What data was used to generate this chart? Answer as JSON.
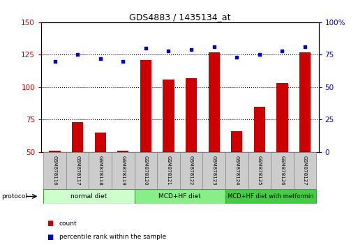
{
  "title": "GDS4883 / 1435134_at",
  "samples": [
    "GSM878116",
    "GSM878117",
    "GSM878118",
    "GSM878119",
    "GSM878120",
    "GSM878121",
    "GSM878122",
    "GSM878123",
    "GSM878124",
    "GSM878125",
    "GSM878126",
    "GSM878127"
  ],
  "bar_values": [
    51,
    73,
    65,
    51,
    121,
    106,
    107,
    127,
    66,
    85,
    103,
    127
  ],
  "dot_values": [
    70,
    75,
    72,
    70,
    80,
    78,
    79,
    81,
    73,
    75,
    78,
    81
  ],
  "bar_color": "#cc0000",
  "dot_color": "#0000cc",
  "ylim_left": [
    50,
    150
  ],
  "ylim_right": [
    0,
    100
  ],
  "yticks_left": [
    50,
    75,
    100,
    125,
    150
  ],
  "yticks_right": [
    0,
    25,
    50,
    75,
    100
  ],
  "ytick_labels_right": [
    "0",
    "25",
    "50",
    "75",
    "100%"
  ],
  "grid_values": [
    75,
    100,
    125
  ],
  "groups": [
    {
      "label": "normal diet",
      "start": 0,
      "end": 4,
      "color": "#ccffcc"
    },
    {
      "label": "MCD+HF diet",
      "start": 4,
      "end": 8,
      "color": "#88ee88"
    },
    {
      "label": "MCD+HF diet with metformin",
      "start": 8,
      "end": 12,
      "color": "#44cc44"
    }
  ],
  "protocol_label": "protocol",
  "legend_items": [
    {
      "label": "count",
      "color": "#cc0000"
    },
    {
      "label": "percentile rank within the sample",
      "color": "#0000cc"
    }
  ],
  "bg_color": "#ffffff",
  "plot_bg_color": "#ffffff",
  "tick_color_left": "#cc0000",
  "tick_color_right": "#0000cc",
  "sample_label_bg": "#cccccc",
  "bar_width": 0.5
}
